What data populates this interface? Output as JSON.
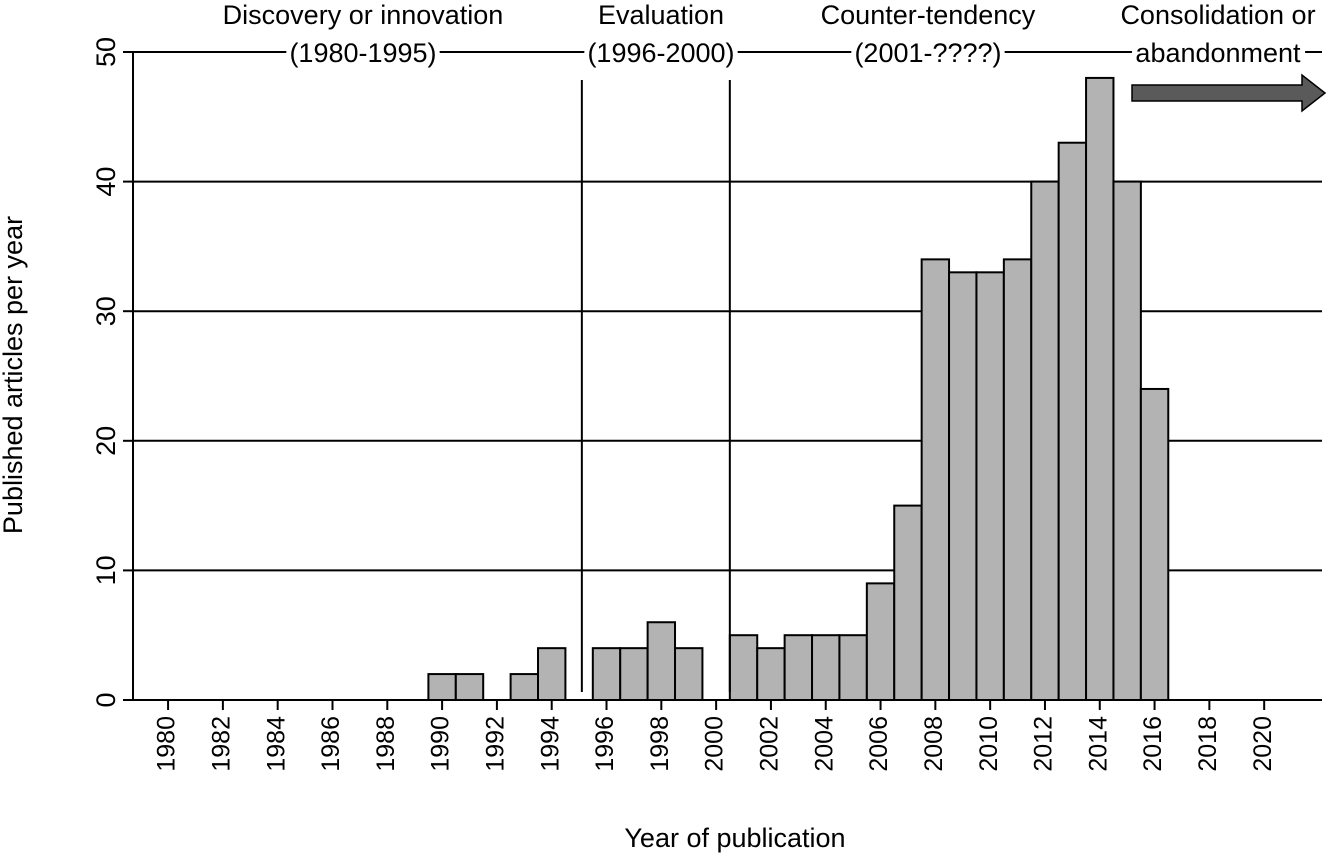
{
  "chart_data": {
    "type": "bar",
    "ylabel": "Published articles per year",
    "xlabel": "Year of publication",
    "x": [
      1990,
      1991,
      1993,
      1994,
      1996,
      1997,
      1998,
      1999,
      2001,
      2002,
      2003,
      2004,
      2005,
      2006,
      2007,
      2008,
      2009,
      2010,
      2011,
      2012,
      2013,
      2014,
      2015,
      2016
    ],
    "values": [
      2,
      2,
      2,
      4,
      4,
      4,
      6,
      4,
      5,
      4,
      5,
      5,
      5,
      9,
      15,
      34,
      33,
      33,
      34,
      40,
      43,
      48,
      40,
      24
    ],
    "color": "#b3b3b3",
    "xlim": [
      1978.72,
      2022.11
    ],
    "xticks": [
      1980,
      1982,
      1984,
      1986,
      1988,
      1990,
      1992,
      1994,
      1996,
      1998,
      2000,
      2002,
      2004,
      2006,
      2008,
      2010,
      2012,
      2014,
      2016,
      2018,
      2020
    ],
    "ylim": [
      0,
      50
    ],
    "yticks": [
      0,
      10,
      20,
      30,
      40,
      50
    ],
    "grid": true,
    "vlines": [
      1995.1,
      2000.5
    ],
    "annotations": [
      [
        "Discovery or innovation",
        "(1980-1995)"
      ],
      [
        "Evaluation",
        "(1996-2000)"
      ],
      [
        "Counter-tendency",
        "(2001-????)"
      ],
      [
        "Consolidation or",
        "abandonment"
      ]
    ]
  }
}
